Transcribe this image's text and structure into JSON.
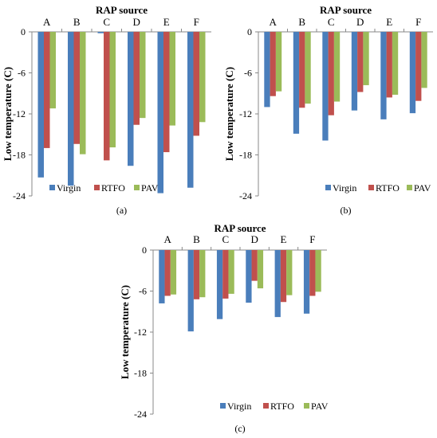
{
  "colors": {
    "virgin": "#4a7ebb",
    "rtfo": "#c0504d",
    "pav": "#9bbb59",
    "axis": "#888888"
  },
  "chart_data": [
    {
      "type": "bar",
      "panel_label": "(a)",
      "title": "RAP source",
      "ylabel": "Low temperature (C)",
      "xlabel": "",
      "categories": [
        "A",
        "B",
        "C",
        "D",
        "E",
        "F"
      ],
      "yticks": [
        "0",
        "-6",
        "-12",
        "-18",
        "-24"
      ],
      "ylim": [
        -24,
        0
      ],
      "grid": false,
      "legend_position": "bottom",
      "series": [
        {
          "name": "Virgin",
          "values": [
            -21.3,
            -22.5,
            -0.2,
            -19.6,
            -23.6,
            -22.8
          ]
        },
        {
          "name": "RTFO",
          "values": [
            -17.0,
            -16.4,
            -18.8,
            -13.6,
            -17.6,
            -15.2
          ]
        },
        {
          "name": "PAV",
          "values": [
            -11.2,
            -17.9,
            -16.9,
            -12.6,
            -13.7,
            -13.2
          ]
        }
      ]
    },
    {
      "type": "bar",
      "panel_label": "(b)",
      "title": "RAP source",
      "ylabel": "Low temperature (C)",
      "xlabel": "",
      "categories": [
        "A",
        "B",
        "C",
        "D",
        "E",
        "F"
      ],
      "yticks": [
        "0",
        "-6",
        "-12",
        "-18",
        "-24"
      ],
      "ylim": [
        -24,
        0
      ],
      "grid": false,
      "legend_position": "bottom",
      "series": [
        {
          "name": "Virgin",
          "values": [
            -11.0,
            -14.9,
            -15.9,
            -11.5,
            -12.8,
            -11.9
          ]
        },
        {
          "name": "RTFO",
          "values": [
            -9.4,
            -11.1,
            -12.2,
            -8.8,
            -9.6,
            -10.1
          ]
        },
        {
          "name": "PAV",
          "values": [
            -8.7,
            -10.5,
            -10.2,
            -7.8,
            -9.2,
            -8.2
          ]
        }
      ]
    },
    {
      "type": "bar",
      "panel_label": "(c)",
      "title": "RAP source",
      "ylabel": "Low temperature (C)",
      "xlabel": "",
      "categories": [
        "A",
        "B",
        "C",
        "D",
        "E",
        "F"
      ],
      "yticks": [
        "0",
        "-6",
        "-12",
        "-18",
        "-24"
      ],
      "ylim": [
        -24,
        0
      ],
      "grid": false,
      "legend_position": "bottom",
      "series": [
        {
          "name": "Virgin",
          "values": [
            -7.8,
            -11.9,
            -10.1,
            -7.7,
            -9.8,
            -9.3
          ]
        },
        {
          "name": "RTFO",
          "values": [
            -6.7,
            -7.2,
            -7.1,
            -4.5,
            -7.6,
            -6.7
          ]
        },
        {
          "name": "PAV",
          "values": [
            -6.5,
            -6.9,
            -6.4,
            -5.6,
            -6.6,
            -6.1
          ]
        }
      ]
    }
  ]
}
